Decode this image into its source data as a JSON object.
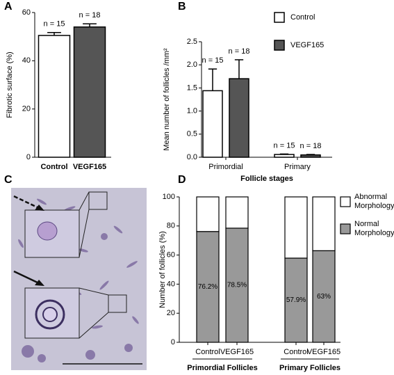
{
  "chart_data": [
    {
      "type": "bar",
      "panel_label": "A",
      "ylabel": "Fibrotic surface (%)",
      "categories": [
        "Control",
        "VEGF165"
      ],
      "series": [
        {
          "name": "Fibrotic surface",
          "colors": [
            "#ffffff",
            "#555555"
          ],
          "values": [
            50.5,
            54
          ],
          "errors": [
            1.2,
            1.3
          ],
          "n_labels": [
            "n = 15",
            "n = 18"
          ]
        }
      ],
      "ylim": [
        0,
        60
      ],
      "yticks": [
        0,
        20,
        40,
        60
      ]
    },
    {
      "type": "bar",
      "panel_label": "B",
      "ylabel": "Mean number of follicles /mm²",
      "xlabel": "Follicle stages",
      "categories": [
        "Primordial",
        "Primary"
      ],
      "series": [
        {
          "name": "Control",
          "color": "#ffffff",
          "values": [
            1.44,
            0.06
          ],
          "errors": [
            0.47,
            0.01
          ],
          "n_labels": [
            "n = 15",
            "n = 15"
          ]
        },
        {
          "name": "VEGF165",
          "color": "#555555",
          "values": [
            1.7,
            0.05
          ],
          "errors": [
            0.41,
            0.01
          ],
          "n_labels": [
            "n = 18",
            "n = 18"
          ]
        }
      ],
      "ylim": [
        0,
        2.5
      ],
      "yticks": [
        {
          "value": 0,
          "label": "0.0"
        },
        0.5,
        {
          "value": 1,
          "label": "1.0"
        },
        1.5,
        {
          "value": 2,
          "label": "2.0"
        },
        2.5
      ],
      "legend": "top-right"
    },
    {
      "type": "stacked_bar",
      "panel_label": "D",
      "ylabel": "Number of follicles (%)",
      "categories": [
        "Control",
        "VEGF165",
        "Control",
        "VEGF165"
      ],
      "groups": [
        "Primordial Follicles",
        "Primary Follicles"
      ],
      "series": [
        {
          "name": "Normal Morphology",
          "color": "#999999",
          "values": [
            76.2,
            78.5,
            57.9,
            63
          ],
          "value_labels": [
            "76.2%",
            "78.5%",
            "57.9%",
            "63%"
          ]
        },
        {
          "name": "Abnormal Morphology",
          "color": "#ffffff",
          "values": [
            23.8,
            21.5,
            42.1,
            37
          ]
        }
      ],
      "ylim": [
        0,
        100
      ],
      "yticks": [
        0,
        20,
        40,
        60,
        80,
        100
      ],
      "legend": "right"
    }
  ],
  "panel_c": {
    "label": "C"
  }
}
